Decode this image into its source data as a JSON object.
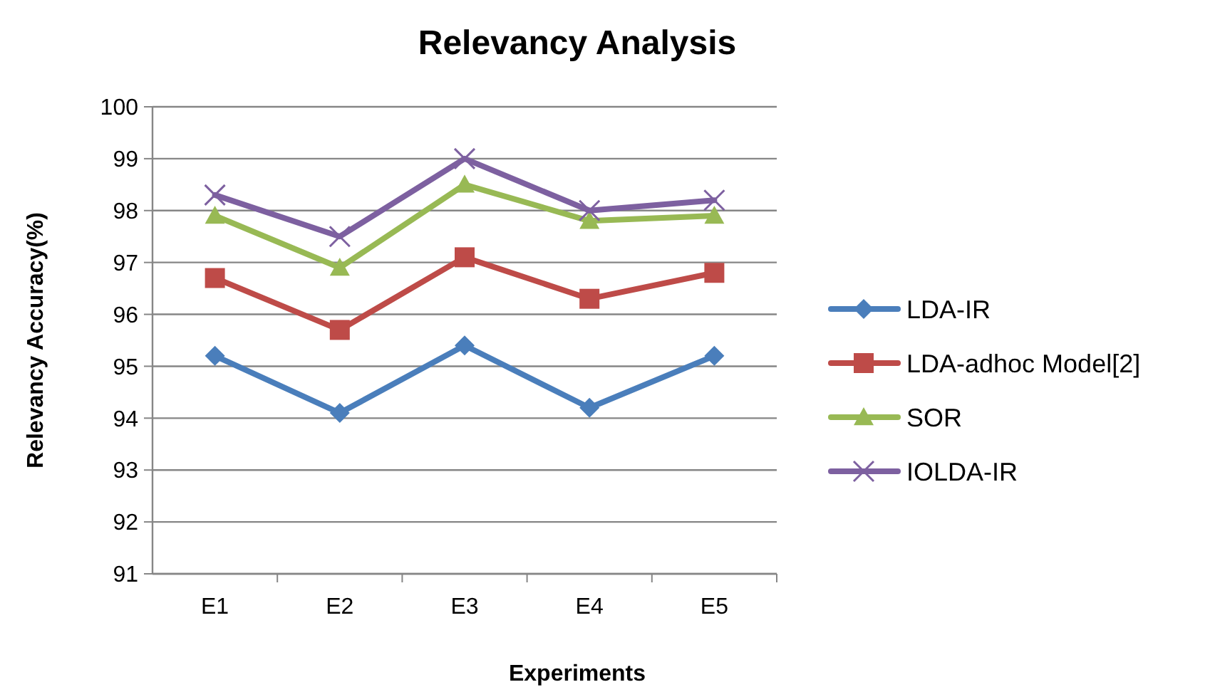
{
  "chart_data": {
    "type": "line",
    "title": "Relevancy Analysis",
    "xlabel": "Experiments",
    "ylabel": "Relevancy Accuracy(%)",
    "categories": [
      "E1",
      "E2",
      "E3",
      "E4",
      "E5"
    ],
    "series": [
      {
        "name": "LDA-IR",
        "color": "#4a7ebb",
        "marker": "diamond",
        "values": [
          95.2,
          94.1,
          95.4,
          94.2,
          95.2
        ]
      },
      {
        "name": "LDA-adhoc Model[2]",
        "color": "#be4b48",
        "marker": "square",
        "values": [
          96.7,
          95.7,
          97.1,
          96.3,
          96.8
        ]
      },
      {
        "name": "SOR",
        "color": "#98b954",
        "marker": "triangle",
        "values": [
          97.9,
          96.9,
          98.5,
          97.8,
          97.9
        ]
      },
      {
        "name": "IOLDA-IR",
        "color": "#7d60a0",
        "marker": "cross",
        "values": [
          98.3,
          97.5,
          99.0,
          98.0,
          98.2
        ]
      }
    ],
    "ylim": [
      91,
      100
    ],
    "yticks": [
      91,
      92,
      93,
      94,
      95,
      96,
      97,
      98,
      99,
      100
    ],
    "grid": "y",
    "legend": "right"
  }
}
